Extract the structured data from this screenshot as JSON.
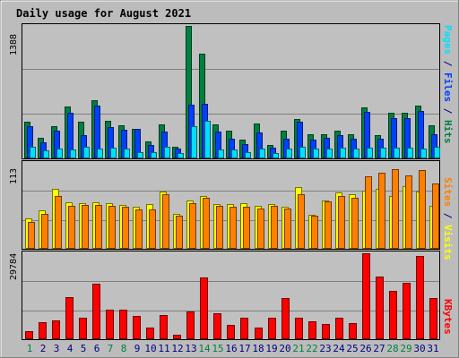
{
  "chart_data": {
    "type": "bar",
    "title": "Daily usage for August 2021",
    "categories": [
      "1",
      "2",
      "3",
      "4",
      "5",
      "6",
      "7",
      "8",
      "9",
      "10",
      "11",
      "12",
      "13",
      "14",
      "15",
      "16",
      "17",
      "18",
      "19",
      "20",
      "21",
      "22",
      "23",
      "24",
      "25",
      "26",
      "27",
      "28",
      "29",
      "30",
      "31"
    ],
    "weekend_days": [
      "1",
      "7",
      "8",
      "14",
      "15",
      "21",
      "22",
      "28",
      "29"
    ],
    "panels": [
      {
        "id": "hits-panel",
        "max_label": "1388",
        "ymax": 1388,
        "series": [
          {
            "name": "Hits",
            "color": "#008040",
            "values": [
              380,
              220,
              340,
              540,
              380,
              610,
              390,
              350,
              310,
              180,
              360,
              120,
              1388,
              1100,
              360,
              290,
              200,
              370,
              140,
              290,
              410,
              250,
              250,
              290,
              250,
              530,
              240,
              480,
              480,
              550,
              350
            ]
          },
          {
            "name": "Files",
            "color": "#0040ff",
            "values": [
              340,
              170,
              290,
              480,
              240,
              550,
              330,
              300,
              310,
              140,
              280,
              100,
              560,
              570,
              280,
              210,
              150,
              270,
              110,
              210,
              380,
              200,
              220,
              240,
              210,
              490,
              210,
              420,
              420,
              500,
              250
            ]
          },
          {
            "name": "Pages",
            "color": "#00e0ff",
            "values": [
              120,
              80,
              100,
              90,
              120,
              100,
              110,
              100,
              70,
              70,
              120,
              60,
              340,
              390,
              90,
              90,
              70,
              100,
              60,
              100,
              120,
              100,
              100,
              110,
              100,
              110,
              110,
              110,
              110,
              100,
              120
            ]
          }
        ]
      },
      {
        "id": "visits-panel",
        "max_label": "113",
        "ymax": 113,
        "series": [
          {
            "name": "Visits",
            "color": "#ffff00",
            "values": [
              40,
              51,
              79,
              61,
              60,
              61,
              60,
              58,
              55,
              59,
              75,
              46,
              64,
              70,
              59,
              59,
              60,
              56,
              59,
              55,
              81,
              45,
              64,
              74,
              72,
              76,
              79,
              70,
              82,
              75,
              57
            ]
          },
          {
            "name": "Sites",
            "color": "#ff8000",
            "values": [
              35,
              46,
              69,
              56,
              58,
              58,
              56,
              55,
              52,
              52,
              72,
              44,
              60,
              67,
              56,
              55,
              55,
              53,
              56,
              53,
              72,
              43,
              62,
              69,
              67,
              95,
              100,
              105,
              97,
              103,
              86
            ]
          }
        ]
      },
      {
        "id": "kbytes-panel",
        "max_label": "29784",
        "ymax": 29784,
        "series": [
          {
            "name": "KBytes",
            "color": "#ff0000",
            "values": [
              2800,
              6000,
              6600,
              14600,
              7600,
              19300,
              10200,
              10200,
              8200,
              3900,
              8500,
              1700,
              9500,
              21300,
              9100,
              5100,
              7600,
              4000,
              7500,
              14400,
              7300,
              6100,
              5300,
              7300,
              5700,
              29784,
              21600,
              16800,
              19600,
              28800,
              14200
            ]
          }
        ]
      }
    ],
    "side_labels": {
      "hits": [
        {
          "text": "Pages",
          "color": "#00e0ff"
        },
        {
          "text": " / ",
          "color": "#000080"
        },
        {
          "text": "Files",
          "color": "#0040ff"
        },
        {
          "text": " / ",
          "color": "#000080"
        },
        {
          "text": "Hits",
          "color": "#008040"
        }
      ],
      "visits": [
        {
          "text": "Sites",
          "color": "#ff8000"
        },
        {
          "text": " / ",
          "color": "#000080"
        },
        {
          "text": "Visits",
          "color": "#ffff00"
        }
      ],
      "kbytes": [
        {
          "text": "KBytes",
          "color": "#ff0000"
        }
      ]
    },
    "colors": {
      "background": "#c0c0c0",
      "page": "#bcbcbc",
      "title": "#0000c0",
      "weekday": "#000080",
      "weekend": "#008040",
      "gridline": "#808080"
    },
    "grid": true
  }
}
